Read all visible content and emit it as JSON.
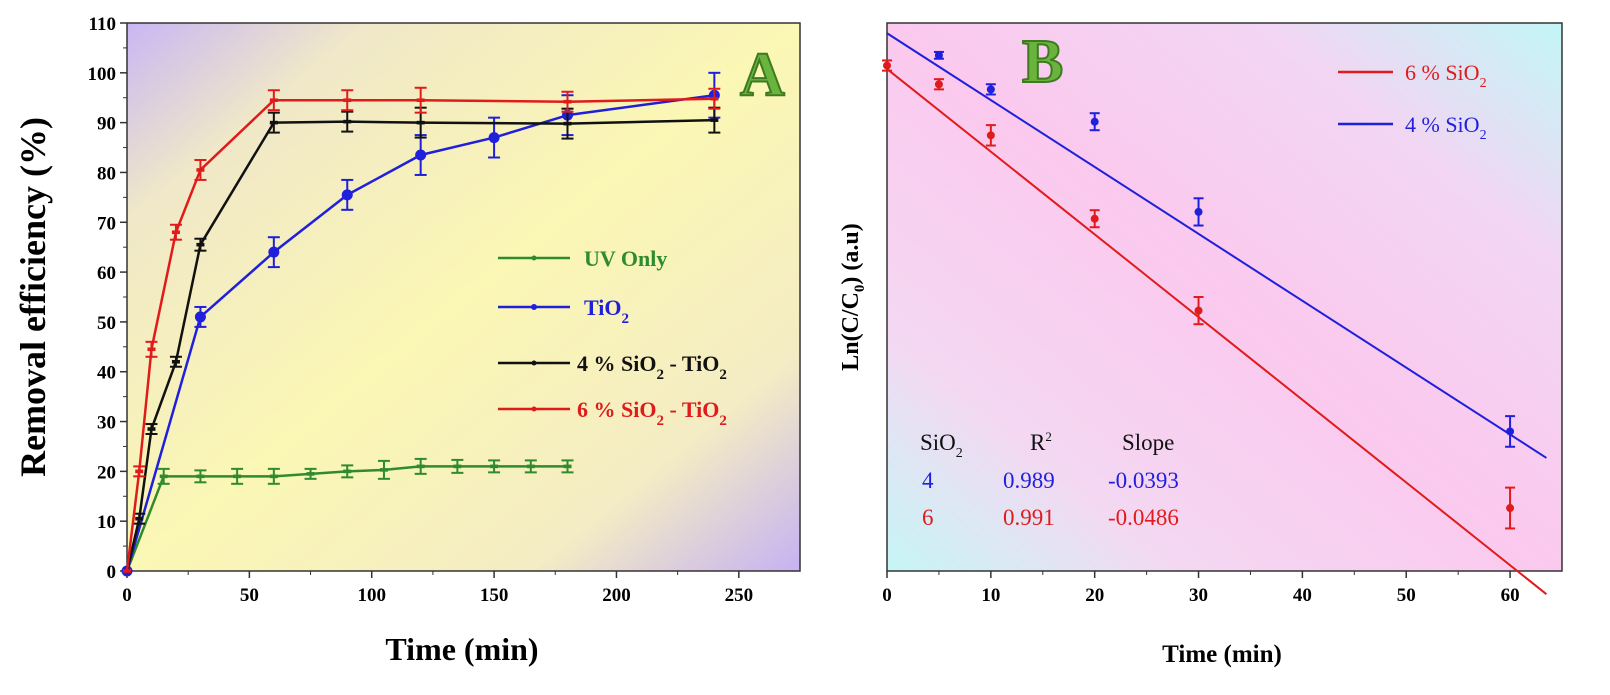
{
  "chart_data": [
    {
      "type": "line",
      "panel_label": "A",
      "xlabel": "Time (min)",
      "ylabel": "Removal efficiency (%)",
      "xlim": [
        0,
        275
      ],
      "ylim": [
        0,
        110
      ],
      "xticks": [
        0,
        50,
        100,
        150,
        200,
        250
      ],
      "yticks": [
        0,
        10,
        20,
        30,
        40,
        50,
        60,
        70,
        80,
        90,
        100,
        110
      ],
      "grid": false,
      "legend_position": "center-right",
      "series": [
        {
          "name": "UV Only",
          "color": "#2e8b2e",
          "marker": "dash",
          "x": [
            0,
            15,
            30,
            45,
            60,
            75,
            90,
            105,
            120,
            135,
            150,
            165,
            180
          ],
          "y": [
            0,
            19,
            19,
            19,
            19,
            19.5,
            20,
            20.3,
            21,
            21,
            21,
            21,
            21
          ],
          "err": [
            0,
            1.5,
            1.2,
            1.5,
            1.5,
            1,
            1.2,
            1.8,
            1.5,
            1.3,
            1.2,
            1.2,
            1.2
          ]
        },
        {
          "name": "TiO2",
          "color": "#1f1fdc",
          "marker": "circle",
          "x": [
            0,
            30,
            60,
            90,
            120,
            150,
            180,
            240
          ],
          "y": [
            0,
            51,
            64,
            75.5,
            83.5,
            87,
            91.5,
            95.5
          ],
          "err": [
            0,
            2,
            3,
            3,
            4,
            4,
            4,
            4.5
          ]
        },
        {
          "name": "4 % SiO2 - TiO2",
          "color": "#111111",
          "marker": "dash",
          "x": [
            0,
            5,
            10,
            20,
            30,
            60,
            90,
            120,
            180,
            240
          ],
          "y": [
            0,
            10.5,
            28.5,
            42,
            65.5,
            90,
            90.2,
            90,
            89.8,
            90.5
          ],
          "err": [
            0,
            1,
            1,
            1,
            1.2,
            2,
            2,
            3,
            3,
            2.5
          ]
        },
        {
          "name": "6 % SiO2 - TiO2",
          "color": "#e01b1b",
          "marker": "dash",
          "x": [
            0,
            5,
            10,
            20,
            30,
            60,
            90,
            120,
            180,
            240
          ],
          "y": [
            0,
            20,
            44.5,
            68,
            80.5,
            94.5,
            94.5,
            94.5,
            94.2,
            94.8
          ],
          "err": [
            0,
            1,
            1.5,
            1.5,
            2,
            2,
            2,
            2.5,
            2,
            2
          ]
        }
      ]
    },
    {
      "type": "scatter",
      "panel_label": "B",
      "xlabel": "Time (min)",
      "ylabel": "Ln(C/C0) (a.u)",
      "xlim": [
        0,
        65
      ],
      "ylim": [
        -2.95,
        0.27
      ],
      "xticks": [
        0,
        10,
        20,
        30,
        40,
        50,
        60
      ],
      "grid": false,
      "legend_position": "top-right",
      "series": [
        {
          "name": "6 % SiO2",
          "color": "#e01b1b",
          "x": [
            0,
            5,
            10,
            20,
            30,
            60
          ],
          "y": [
            0.02,
            -0.09,
            -0.39,
            -0.88,
            -1.42,
            -2.58
          ],
          "err": [
            0.03,
            0.03,
            0.06,
            0.05,
            0.08,
            0.12
          ],
          "fit": {
            "intercept": 0.0,
            "slope": -0.0486
          }
        },
        {
          "name": "4 % SiO2",
          "color": "#1f1fdc",
          "x": [
            5,
            10,
            20,
            30,
            60
          ],
          "y": [
            0.08,
            -0.12,
            -0.31,
            -0.84,
            -2.13
          ],
          "err": [
            0.02,
            0.03,
            0.05,
            0.08,
            0.09
          ],
          "fit": {
            "intercept": 0.21,
            "slope": -0.0393
          }
        }
      ],
      "fit_table": {
        "headers": [
          "SiO2",
          "R2",
          "Slope"
        ],
        "rows": [
          {
            "sio2": "4",
            "r2": "0.989",
            "slope": "-0.0393",
            "color": "#1f1fdc"
          },
          {
            "sio2": "6",
            "r2": "0.991",
            "slope": "-0.0486",
            "color": "#e01b1b"
          }
        ]
      }
    }
  ]
}
